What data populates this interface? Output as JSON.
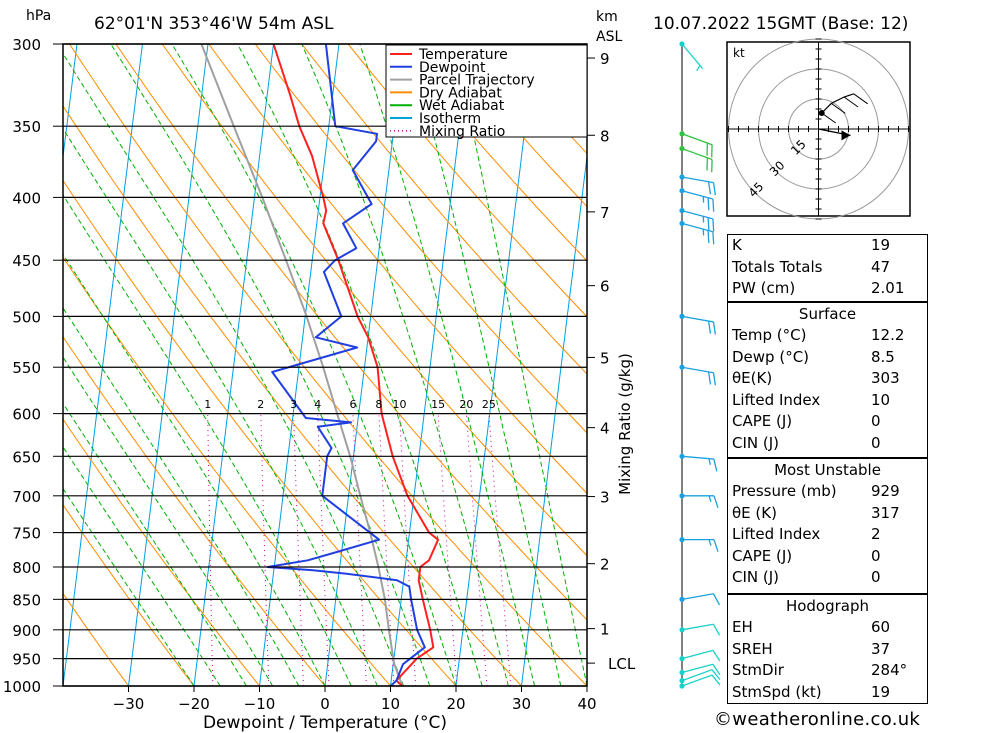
{
  "header": {
    "hpa_label": "hPa",
    "location": "62°01'N  353°46'W  54m  ASL",
    "km_label": "km",
    "asl_label": "ASL",
    "datetime": "10.07.2022  15GMT  (Base: 12)"
  },
  "legend": [
    {
      "label": "Temperature",
      "color": "#ff2020",
      "style": "solid"
    },
    {
      "label": "Dewpoint",
      "color": "#1f3fe0",
      "style": "solid"
    },
    {
      "label": "Parcel Trajectory",
      "color": "#a0a0a0",
      "style": "solid"
    },
    {
      "label": "Dry Adiabat",
      "color": "#ff8c00",
      "style": "solid"
    },
    {
      "label": "Wet Adiabat",
      "color": "#00b000",
      "style": "solid"
    },
    {
      "label": "Isotherm",
      "color": "#00a0e0",
      "style": "solid"
    },
    {
      "label": "Mixing Ratio",
      "color": "#d000a0",
      "style": "dotted"
    }
  ],
  "chart_data": {
    "type": "line",
    "xlabel": "Dewpoint / Temperature (°C)",
    "xlim": [
      -40,
      40
    ],
    "x_ticks": [
      -30,
      -20,
      -10,
      0,
      10,
      20,
      30,
      40
    ],
    "ylabel": "hPa",
    "y_log": true,
    "ylim": [
      1000,
      300
    ],
    "pressure_levels": [
      300,
      350,
      400,
      450,
      500,
      550,
      600,
      650,
      700,
      750,
      800,
      850,
      900,
      950,
      1000
    ],
    "km_ticks": [
      {
        "km": "1",
        "p": 898
      },
      {
        "km": "2",
        "p": 795
      },
      {
        "km": "3",
        "p": 701
      },
      {
        "km": "4",
        "p": 616
      },
      {
        "km": "5",
        "p": 540
      },
      {
        "km": "6",
        "p": 472
      },
      {
        "km": "7",
        "p": 411
      },
      {
        "km": "8",
        "p": 356
      },
      {
        "km": "9",
        "p": 308
      }
    ],
    "lcl": {
      "label": "LCL",
      "p": 958
    },
    "mixing_ratio_label": "Mixing Ratio (g/kg)",
    "mixing_ratios": [
      1,
      2,
      3,
      4,
      6,
      8,
      10,
      15,
      20,
      25
    ],
    "series": [
      {
        "name": "Temperature",
        "color": "#ff2020",
        "points": [
          [
            1000,
            11.8
          ],
          [
            990,
            10.8
          ],
          [
            950,
            13.5
          ],
          [
            930,
            15.8
          ],
          [
            900,
            15
          ],
          [
            850,
            13.3
          ],
          [
            820,
            12.3
          ],
          [
            800,
            12.3
          ],
          [
            790,
            13.5
          ],
          [
            760,
            14.5
          ],
          [
            750,
            13
          ],
          [
            700,
            9
          ],
          [
            650,
            6
          ],
          [
            600,
            3.5
          ],
          [
            550,
            2
          ],
          [
            520,
            0
          ],
          [
            500,
            -2
          ],
          [
            450,
            -6
          ],
          [
            420,
            -9
          ],
          [
            410,
            -8.8
          ],
          [
            400,
            -9.5
          ],
          [
            370,
            -12
          ],
          [
            350,
            -14.5
          ],
          [
            330,
            -16.5
          ],
          [
            300,
            -20
          ]
        ]
      },
      {
        "name": "Dewpoint",
        "color": "#1f3fe0",
        "points": [
          [
            1000,
            10
          ],
          [
            990,
            10.8
          ],
          [
            960,
            11.5
          ],
          [
            930,
            14.5
          ],
          [
            900,
            13
          ],
          [
            850,
            11.5
          ],
          [
            830,
            11
          ],
          [
            820,
            9
          ],
          [
            810,
            1
          ],
          [
            805,
            -4
          ],
          [
            800,
            -11
          ],
          [
            790,
            -5
          ],
          [
            780,
            -1.5
          ],
          [
            760,
            5.5
          ],
          [
            700,
            -4
          ],
          [
            650,
            -4
          ],
          [
            640,
            -3.5
          ],
          [
            615,
            -6
          ],
          [
            610,
            -1
          ],
          [
            605,
            -8
          ],
          [
            555,
            -14
          ],
          [
            530,
            -1.5
          ],
          [
            520,
            -8
          ],
          [
            500,
            -4.5
          ],
          [
            460,
            -8
          ],
          [
            450,
            -6.5
          ],
          [
            440,
            -3.5
          ],
          [
            420,
            -6
          ],
          [
            405,
            -2
          ],
          [
            380,
            -5.5
          ],
          [
            360,
            -2.5
          ],
          [
            355,
            -2.5
          ],
          [
            350,
            -9
          ],
          [
            300,
            -12
          ]
        ]
      },
      {
        "name": "Parcel Trajectory",
        "color": "#a0a0a0",
        "points": [
          [
            1000,
            11.8
          ],
          [
            958,
            10.1
          ],
          [
            900,
            8.7
          ],
          [
            850,
            7.5
          ],
          [
            800,
            5.9
          ],
          [
            750,
            4
          ],
          [
            700,
            1.8
          ],
          [
            650,
            -0.5
          ],
          [
            600,
            -3.3
          ],
          [
            550,
            -6.3
          ],
          [
            500,
            -9.8
          ],
          [
            450,
            -14
          ],
          [
            400,
            -18.8
          ],
          [
            350,
            -24.5
          ],
          [
            300,
            -31
          ]
        ]
      }
    ]
  },
  "hodograph": {
    "unit": "kt",
    "rings": [
      "15",
      "30",
      "45"
    ],
    "points": [
      [
        1,
        5
      ],
      [
        4,
        8
      ],
      [
        8,
        10
      ],
      [
        11,
        11
      ]
    ],
    "storm_motion": [
      10,
      -2
    ]
  },
  "wind_barbs": [
    {
      "p": 1000,
      "dir": 250,
      "kt": 10
    },
    {
      "p": 990,
      "dir": 250,
      "kt": 10
    },
    {
      "p": 975,
      "dir": 255,
      "kt": 10
    },
    {
      "p": 950,
      "dir": 255,
      "kt": 10
    },
    {
      "p": 900,
      "dir": 260,
      "kt": 10
    },
    {
      "p": 850,
      "dir": 260,
      "kt": 12
    },
    {
      "p": 760,
      "dir": 270,
      "kt": 15
    },
    {
      "p": 700,
      "dir": 270,
      "kt": 15
    },
    {
      "p": 650,
      "dir": 275,
      "kt": 15
    },
    {
      "p": 550,
      "dir": 280,
      "kt": 20
    },
    {
      "p": 500,
      "dir": 280,
      "kt": 20
    },
    {
      "p": 420,
      "dir": 285,
      "kt": 25
    },
    {
      "p": 410,
      "dir": 285,
      "kt": 25
    },
    {
      "p": 395,
      "dir": 285,
      "kt": 25
    },
    {
      "p": 385,
      "dir": 280,
      "kt": 20
    },
    {
      "p": 365,
      "dir": 290,
      "kt": 20
    },
    {
      "p": 355,
      "dir": 290,
      "kt": 20
    },
    {
      "p": 300,
      "dir": 320,
      "kt": 5
    }
  ],
  "indices": [
    {
      "k": "K",
      "v": "19"
    },
    {
      "k": "Totals Totals",
      "v": "47"
    },
    {
      "k": "PW (cm)",
      "v": "2.01"
    }
  ],
  "surface": {
    "title": "Surface",
    "rows": [
      {
        "k": "Temp (°C)",
        "v": "12.2"
      },
      {
        "k": "Dewp (°C)",
        "v": "8.5"
      },
      {
        "k": "θE(K)",
        "v": "303"
      },
      {
        "k": "Lifted Index",
        "v": "10"
      },
      {
        "k": "CAPE (J)",
        "v": "0"
      },
      {
        "k": "CIN (J)",
        "v": "0"
      }
    ]
  },
  "most_unstable": {
    "title": "Most Unstable",
    "rows": [
      {
        "k": "Pressure (mb)",
        "v": "929"
      },
      {
        "k": "θE (K)",
        "v": "317"
      },
      {
        "k": "Lifted Index",
        "v": "2"
      },
      {
        "k": "CAPE (J)",
        "v": "0"
      },
      {
        "k": "CIN (J)",
        "v": "0"
      }
    ]
  },
  "hodograph_table": {
    "title": "Hodograph",
    "rows": [
      {
        "k": "EH",
        "v": "60"
      },
      {
        "k": "SREH",
        "v": "37"
      },
      {
        "k": "StmDir",
        "v": "284°"
      },
      {
        "k": "StmSpd (kt)",
        "v": "19"
      }
    ]
  },
  "footer": "©weatheronline.co.uk"
}
